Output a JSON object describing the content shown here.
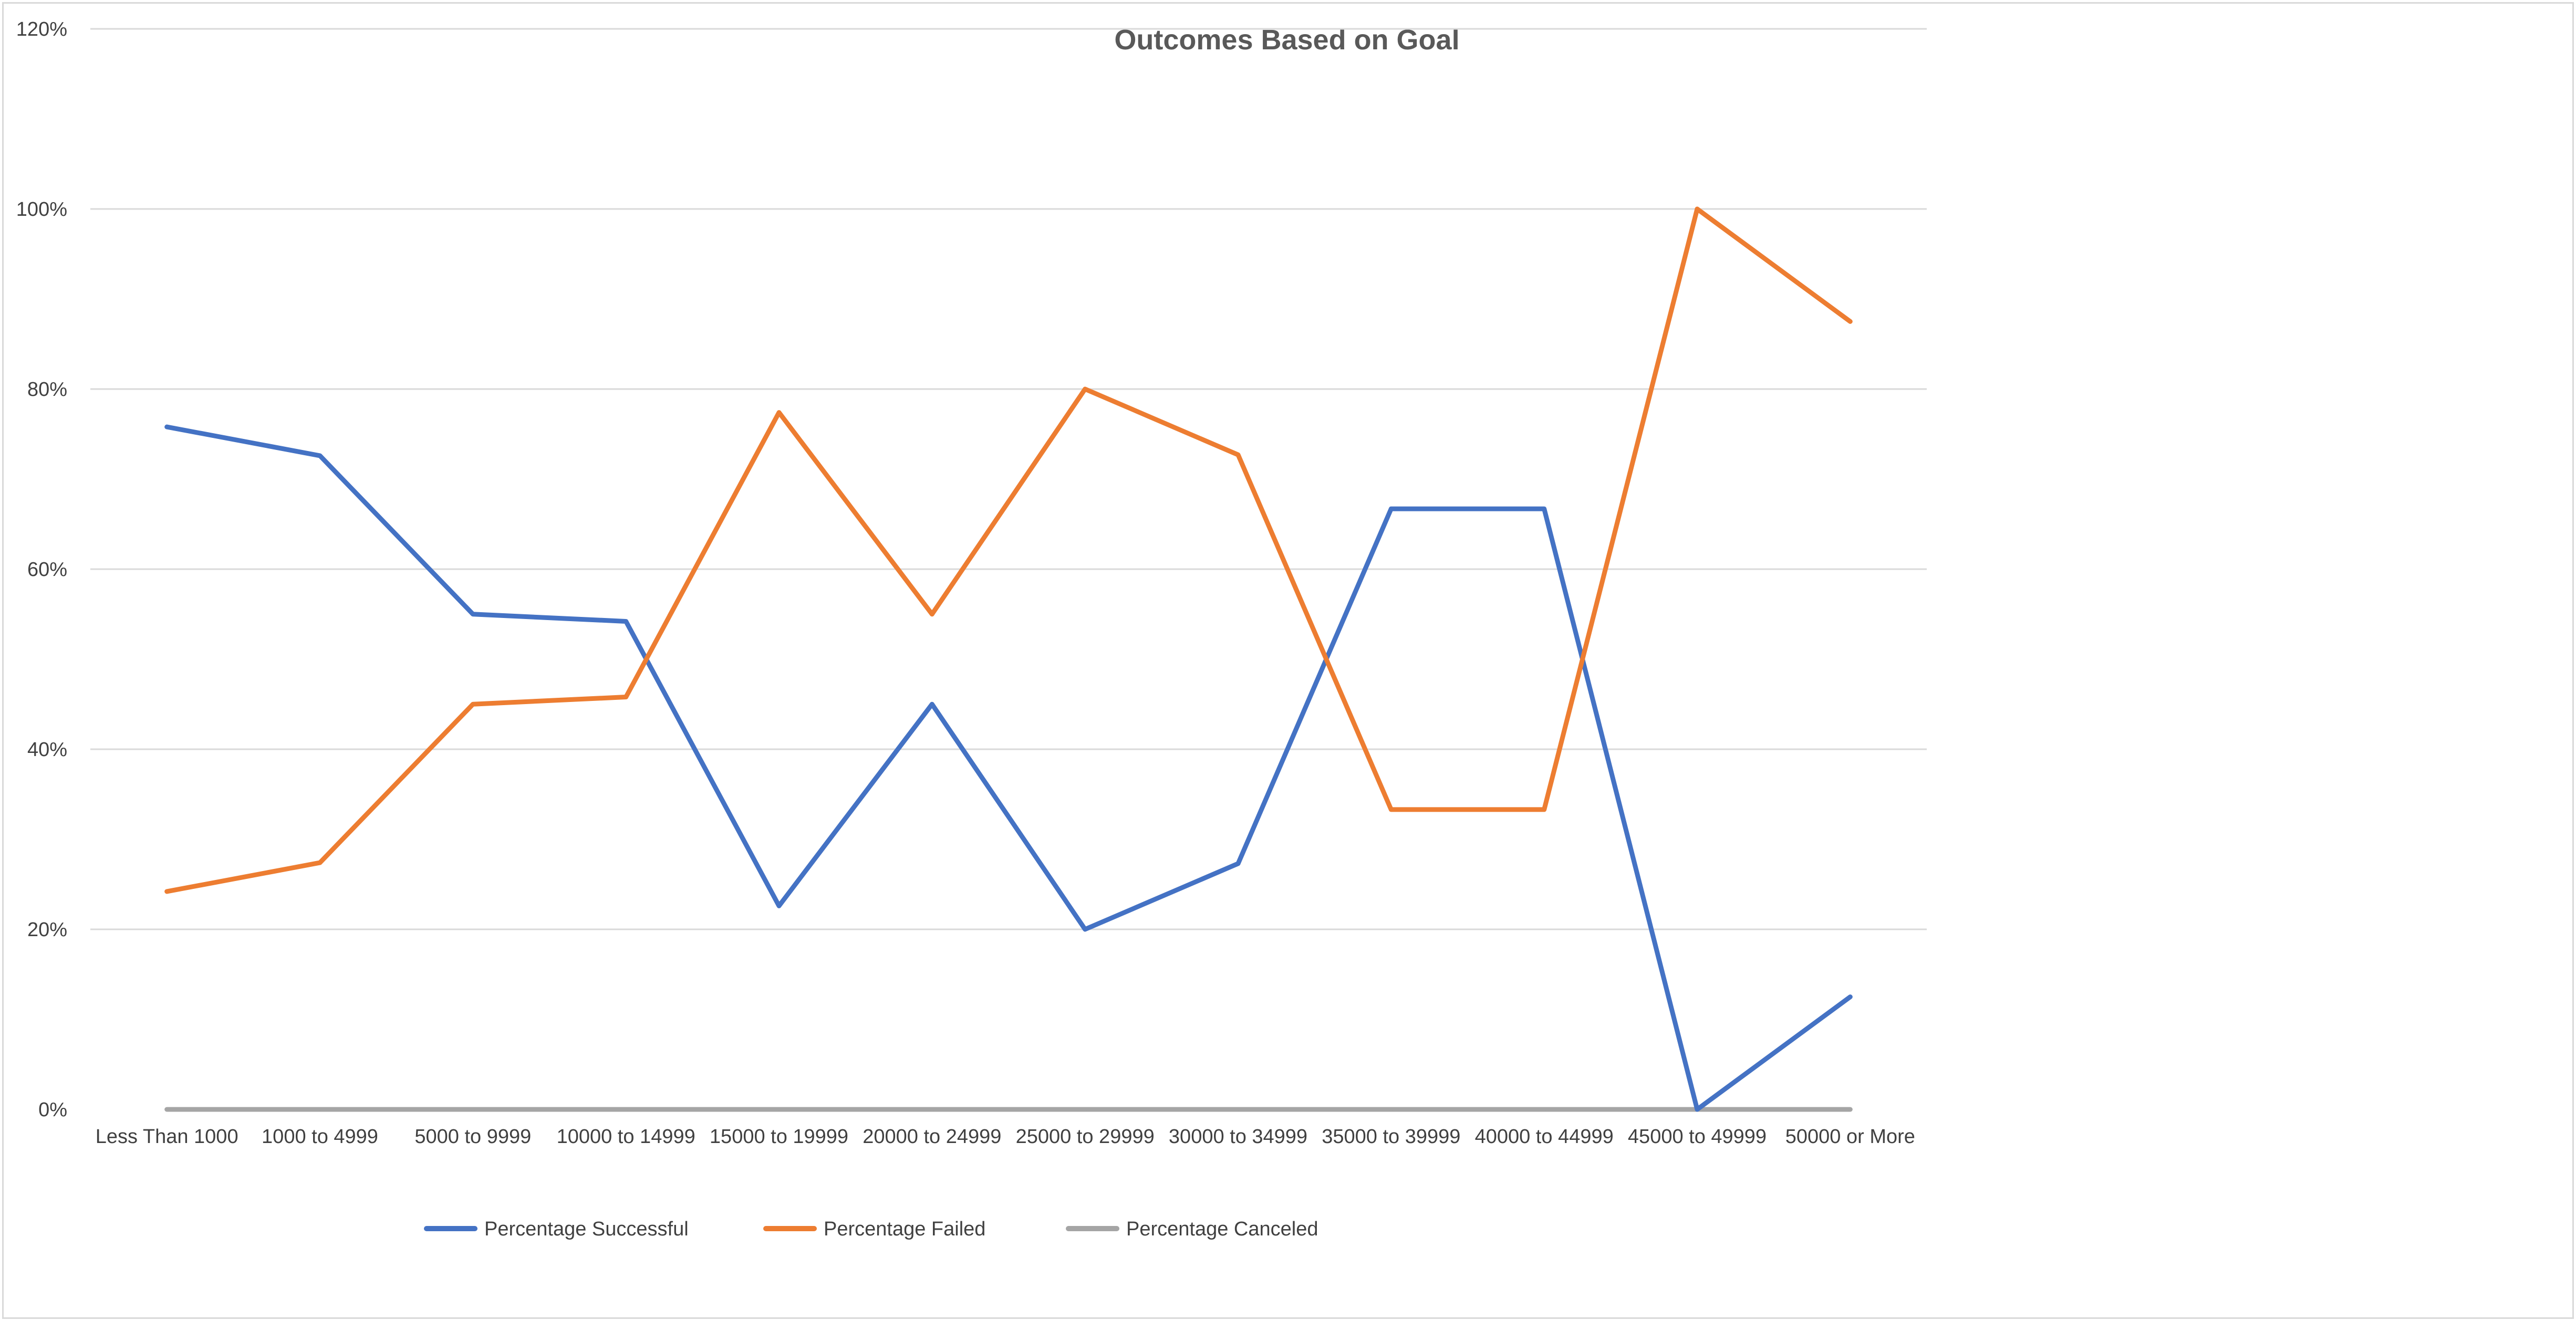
{
  "chart_data": {
    "type": "line",
    "title": "Outcomes Based on Goal",
    "xlabel": "",
    "ylabel": "",
    "categories": [
      "Less Than 1000",
      "1000 to 4999",
      "5000 to 9999",
      "10000 to 14999",
      "15000 to 19999",
      "20000 to 24999",
      "25000 to 29999",
      "30000 to 34999",
      "35000 to 39999",
      "40000 to 44999",
      "45000 to 49999",
      "50000 or More"
    ],
    "ylim": [
      0,
      1.2
    ],
    "yticks": [
      {
        "value": 0,
        "label": "0%"
      },
      {
        "value": 0.2,
        "label": "20%"
      },
      {
        "value": 0.4,
        "label": "40%"
      },
      {
        "value": 0.6,
        "label": "60%"
      },
      {
        "value": 0.8,
        "label": "80%"
      },
      {
        "value": 1.0,
        "label": "100%"
      },
      {
        "value": 1.2,
        "label": "120%"
      }
    ],
    "grid": true,
    "legend_position": "bottom",
    "series": [
      {
        "name": "Percentage Successful",
        "color": "#4472c4",
        "values": [
          0.758,
          0.726,
          0.55,
          0.542,
          0.226,
          0.45,
          0.2,
          0.273,
          0.667,
          0.667,
          0.0,
          0.125
        ]
      },
      {
        "name": "Percentage Failed",
        "color": "#ed7d31",
        "values": [
          0.242,
          0.274,
          0.45,
          0.458,
          0.774,
          0.55,
          0.8,
          0.727,
          0.333,
          0.333,
          1.0,
          0.875
        ]
      },
      {
        "name": "Percentage Canceled",
        "color": "#a5a5a5",
        "values": [
          0,
          0,
          0,
          0,
          0,
          0,
          0,
          0,
          0,
          0,
          0,
          0
        ]
      }
    ]
  }
}
